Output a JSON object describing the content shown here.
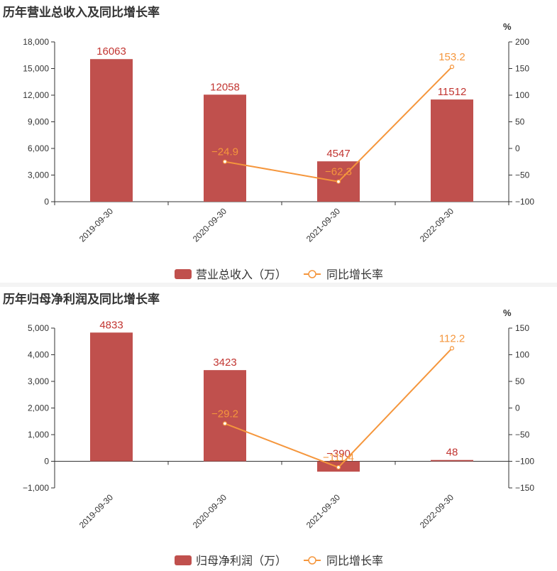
{
  "colors": {
    "bar": "#c0504d",
    "bar_label": "#c23531",
    "line": "#f5963c",
    "axis": "#333333"
  },
  "chart_data": [
    {
      "type": "bar",
      "title": "历年营业总收入及同比增长率",
      "categories": [
        "2019-09-30",
        "2020-09-30",
        "2021-09-30",
        "2022-09-30"
      ],
      "series": [
        {
          "name": "营业总收入（万）",
          "type": "bar",
          "axis": "left",
          "values": [
            16063,
            12058,
            4547,
            11512
          ],
          "labels": [
            "16063",
            "12058",
            "4547",
            "11512"
          ]
        },
        {
          "name": "同比增长率",
          "type": "line",
          "axis": "right",
          "values": [
            null,
            -24.9,
            -62.3,
            153.2
          ],
          "labels": [
            "",
            "−24.9",
            "−62.3",
            "153.2"
          ]
        }
      ],
      "y_left": {
        "min": 0,
        "max": 18000,
        "ticks": [
          "0",
          "3,000",
          "6,000",
          "9,000",
          "12,000",
          "15,000",
          "18,000"
        ]
      },
      "y_right": {
        "min": -100,
        "max": 200,
        "unit": "%",
        "ticks": [
          "−100",
          "−50",
          "0",
          "50",
          "100",
          "150",
          "200"
        ]
      },
      "legend": [
        "营业总收入（万）",
        "同比增长率"
      ]
    },
    {
      "type": "bar",
      "title": "历年归母净利润及同比增长率",
      "categories": [
        "2019-09-30",
        "2020-09-30",
        "2021-09-30",
        "2022-09-30"
      ],
      "series": [
        {
          "name": "归母净利润（万）",
          "type": "bar",
          "axis": "left",
          "values": [
            4833,
            3423,
            -390,
            48
          ],
          "labels": [
            "4833",
            "3423",
            "−390",
            "48"
          ]
        },
        {
          "name": "同比增长率",
          "type": "line",
          "axis": "right",
          "values": [
            null,
            -29.2,
            -111.4,
            112.2
          ],
          "labels": [
            "",
            "−29.2",
            "−111.4",
            "112.2"
          ]
        }
      ],
      "y_left": {
        "min": -1000,
        "max": 5000,
        "ticks": [
          "−1,000",
          "0",
          "1,000",
          "2,000",
          "3,000",
          "4,000",
          "5,000"
        ]
      },
      "y_right": {
        "min": -150,
        "max": 150,
        "unit": "%",
        "ticks": [
          "−150",
          "−100",
          "−50",
          "0",
          "50",
          "100",
          "150"
        ]
      },
      "legend": [
        "归母净利润（万）",
        "同比增长率"
      ]
    }
  ]
}
